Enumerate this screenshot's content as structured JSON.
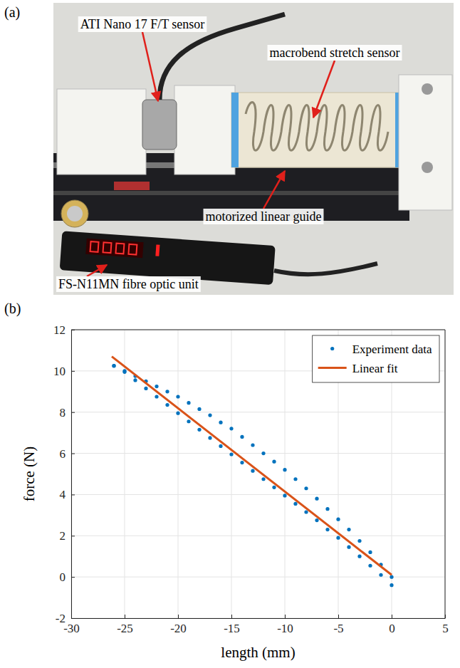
{
  "photo_panel": {
    "label": "(a)",
    "annotations": [
      "ATI Nano 17 F/T sensor",
      "macrobend stretch sensor",
      "motorized linear guide",
      "FS-N11MN fibre optic unit"
    ]
  },
  "chart_data": {
    "type": "scatter",
    "panel_label": "(b)",
    "x_label": "length (mm)",
    "y_label": "force (N)",
    "xlim": [
      -30,
      5
    ],
    "xticks": [
      -30,
      -25,
      -20,
      -15,
      -10,
      -5,
      0,
      5
    ],
    "ylim": [
      -2,
      12
    ],
    "yticks": [
      -2,
      0,
      2,
      4,
      6,
      8,
      10,
      12
    ],
    "grid": true,
    "legend": "upper right",
    "series": [
      {
        "name": "Experiment data",
        "type": "scatter",
        "marker": "dot",
        "color": "#0072BD",
        "x": [
          0,
          -1,
          -2,
          -3,
          -4,
          -5,
          -6,
          -7,
          -8,
          -9,
          -10,
          -11,
          -12,
          -13,
          -14,
          -15,
          -16,
          -17,
          -18,
          -19,
          -20,
          -21,
          -22,
          -23,
          -24,
          -25,
          -26,
          -26,
          -25,
          -24,
          -23,
          -22,
          -21,
          -20,
          -19,
          -18,
          -17,
          -16,
          -15,
          -14,
          -13,
          -12,
          -11,
          -10,
          -9,
          -8,
          -7,
          -6,
          -5,
          -4,
          -3,
          -2,
          -1,
          0
        ],
        "values": [
          0.0,
          0.6,
          1.2,
          1.75,
          2.3,
          2.8,
          3.3,
          3.8,
          4.3,
          4.75,
          5.2,
          5.6,
          6.0,
          6.4,
          6.8,
          7.2,
          7.5,
          7.85,
          8.15,
          8.45,
          8.75,
          9.0,
          9.25,
          9.5,
          9.75,
          10.0,
          10.25,
          10.25,
          9.95,
          9.55,
          9.15,
          8.75,
          8.35,
          7.95,
          7.55,
          7.15,
          6.75,
          6.35,
          5.95,
          5.55,
          5.15,
          4.75,
          4.35,
          3.95,
          3.55,
          3.15,
          2.75,
          2.3,
          1.9,
          1.45,
          1.0,
          0.55,
          0.1,
          -0.4
        ]
      },
      {
        "name": "Linear fit",
        "type": "line",
        "line_style": "solid",
        "color": "#D95319",
        "x": [
          -26.2,
          0
        ],
        "values": [
          10.7,
          0.1
        ]
      }
    ]
  }
}
